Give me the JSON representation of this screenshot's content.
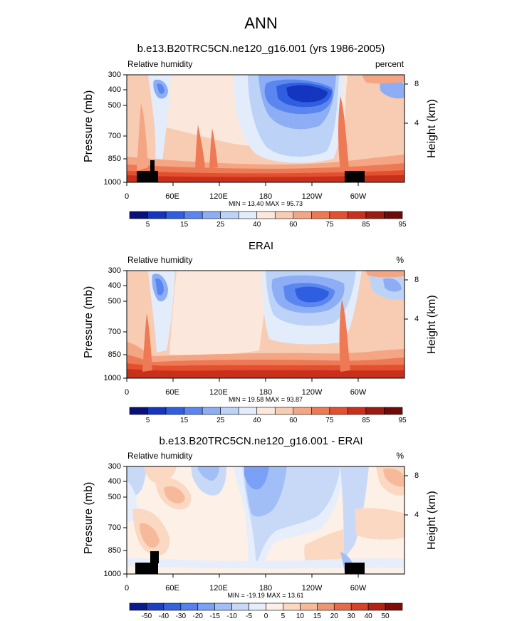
{
  "figure_title": "ANN",
  "chart_data": [
    {
      "type": "heatmap",
      "title": "b.e13.B20TRC5CN.ne120_g16.001 (yrs 1986-2005)",
      "left_label": "Relative humidity",
      "right_label": "percent",
      "ylabel": "Pressure (mb)",
      "y2label": "Height (km)",
      "y_ticks": [
        "300",
        "400",
        "500",
        "700",
        "850",
        "1000"
      ],
      "x_ticks": [
        "0",
        "60E",
        "120E",
        "180",
        "120W",
        "60W"
      ],
      "y2_ticks": [
        "8",
        "4"
      ],
      "min_max_text": "MIN =  13.40   MAX =  95.73",
      "colorbar_labels": [
        "5",
        "15",
        "25",
        "40",
        "60",
        "75",
        "85",
        "95"
      ]
    },
    {
      "type": "heatmap",
      "title": "ERAI",
      "left_label": "Relative humidity",
      "right_label": "%",
      "ylabel": "Pressure (mb)",
      "y2label": "Height (km)",
      "y_ticks": [
        "300",
        "400",
        "500",
        "700",
        "850",
        "1000"
      ],
      "x_ticks": [
        "0",
        "60E",
        "120E",
        "180",
        "120W",
        "60W"
      ],
      "y2_ticks": [
        "8",
        "4"
      ],
      "min_max_text": "MIN =  19.58   MAX =  93.87",
      "colorbar_labels": [
        "5",
        "15",
        "25",
        "40",
        "60",
        "75",
        "85",
        "95"
      ]
    },
    {
      "type": "heatmap",
      "title": "b.e13.B20TRC5CN.ne120_g16.001 - ERAI",
      "left_label": "Relative humidity",
      "right_label": "%",
      "ylabel": "Pressure (mb)",
      "y2label": "Height (km)",
      "y_ticks": [
        "300",
        "400",
        "500",
        "700",
        "850",
        "1000"
      ],
      "x_ticks": [
        "0",
        "60E",
        "120E",
        "180",
        "120W",
        "60W"
      ],
      "y2_ticks": [
        "8",
        "4"
      ],
      "min_max_text": "MIN = -19.19   MAX =  13.61",
      "colorbar_labels": [
        "-50",
        "-40",
        "-30",
        "-20",
        "-15",
        "-10",
        "-5",
        "0",
        "5",
        "10",
        "15",
        "20",
        "30",
        "40",
        "50"
      ]
    }
  ],
  "colors": {
    "abs_scale": [
      "#08107a",
      "#1436bf",
      "#2f5fe0",
      "#5b86f0",
      "#8daef5",
      "#bcd3f7",
      "#e3ecfa",
      "#fbe7dc",
      "#f8ccb2",
      "#f4a584",
      "#ee7a55",
      "#e44f2f",
      "#c9301c",
      "#9b1b10",
      "#6e0b07"
    ],
    "diff_scale": [
      "#0b1a8c",
      "#1e3fc4",
      "#3563de",
      "#5582ee",
      "#7aa1f5",
      "#a2bef7",
      "#c8d9f8",
      "#e7eefb",
      "#fdf0e6",
      "#fad8c2",
      "#f6b99a",
      "#f09472",
      "#e66b4a",
      "#d64228",
      "#b62212",
      "#7e0c07"
    ],
    "land": "#000000"
  }
}
